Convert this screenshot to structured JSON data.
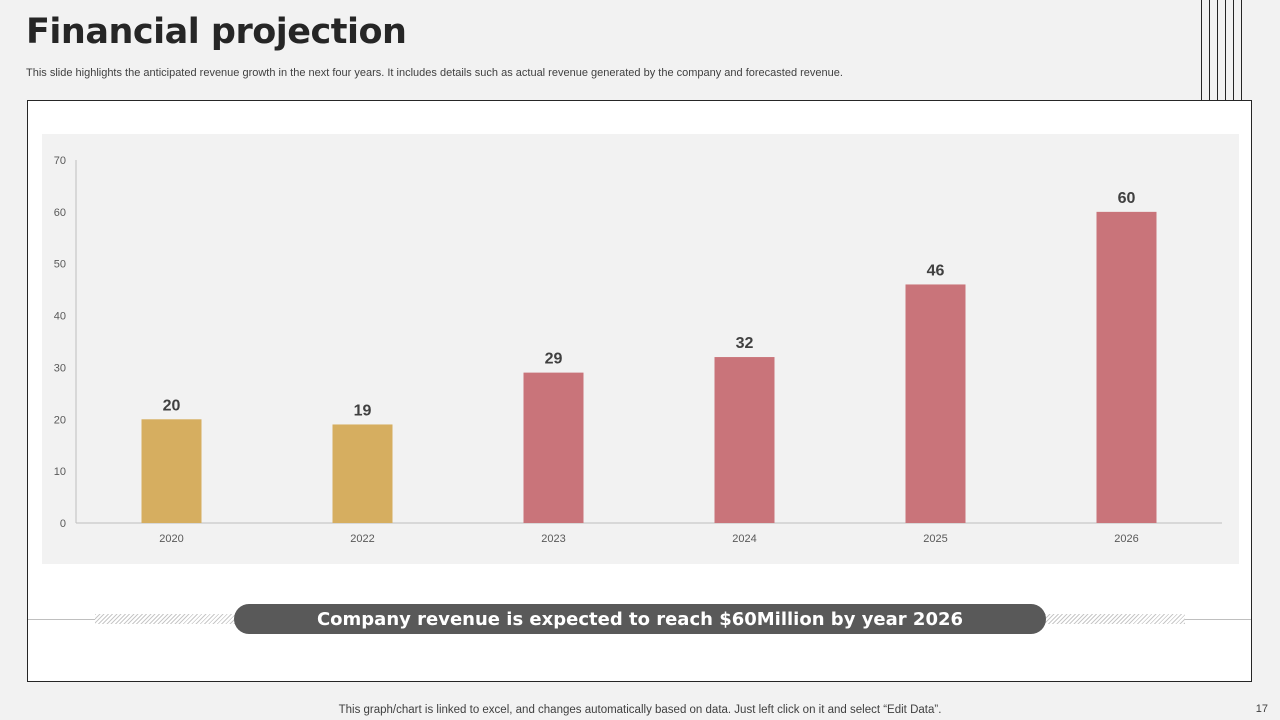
{
  "slide": {
    "title": "Financial projection",
    "subtitle": "This slide highlights the anticipated revenue growth in the next four years. It includes details such as actual revenue generated by the company and forecasted revenue.",
    "banner_text": "Company revenue is expected to reach $60Million by year 2026",
    "footer_note": "This graph/chart is linked to excel, and changes automatically based on data. Just left click on it and select “Edit Data”.",
    "page_number": "17"
  },
  "colors": {
    "actual": "#d6ae60",
    "forecast": "#c9747a",
    "axis": "#bfbfbf",
    "tick_text": "#595959",
    "label_text": "#404040"
  },
  "chart_data": {
    "type": "bar",
    "title": "",
    "xlabel": "",
    "ylabel": "",
    "categories": [
      "2020",
      "2022",
      "2023",
      "2024",
      "2025",
      "2026"
    ],
    "values": [
      20,
      19,
      29,
      32,
      46,
      60
    ],
    "bar_kind": [
      "actual",
      "actual",
      "forecast",
      "forecast",
      "forecast",
      "forecast"
    ],
    "ylim": [
      0,
      70
    ],
    "yticks": [
      0,
      10,
      20,
      30,
      40,
      50,
      60,
      70
    ],
    "grid": false,
    "data_labels": true
  }
}
